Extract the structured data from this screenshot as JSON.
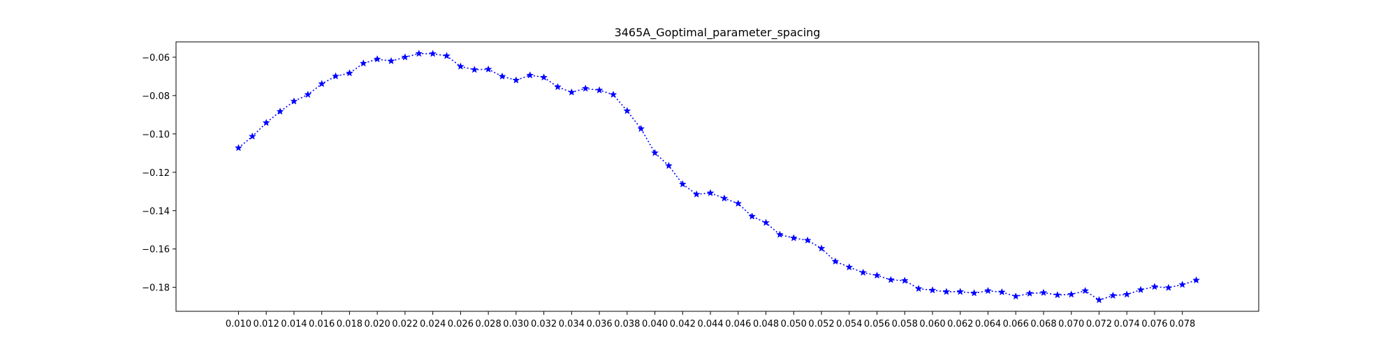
{
  "chart_data": {
    "type": "line",
    "title": "3465A_Goptimal_parameter_spacing",
    "xlabel": "",
    "ylabel": "",
    "xlim": [
      0.0055,
      0.0835
    ],
    "ylim": [
      -0.1925,
      -0.052
    ],
    "xticks": [
      0.01,
      0.012,
      0.014,
      0.016,
      0.018,
      0.02,
      0.022,
      0.024,
      0.026,
      0.028,
      0.03,
      0.032,
      0.034,
      0.036,
      0.038,
      0.04,
      0.042,
      0.044,
      0.046,
      0.048,
      0.05,
      0.052,
      0.054,
      0.056,
      0.058,
      0.06,
      0.062,
      0.064,
      0.066,
      0.068,
      0.07,
      0.072,
      0.074,
      0.076,
      0.078
    ],
    "xtick_labels": [
      "0.010",
      "0.012",
      "0.014",
      "0.016",
      "0.018",
      "0.020",
      "0.022",
      "0.024",
      "0.026",
      "0.028",
      "0.030",
      "0.032",
      "0.034",
      "0.036",
      "0.038",
      "0.040",
      "0.042",
      "0.044",
      "0.046",
      "0.048",
      "0.050",
      "0.052",
      "0.054",
      "0.056",
      "0.058",
      "0.060",
      "0.062",
      "0.064",
      "0.066",
      "0.068",
      "0.070",
      "0.072",
      "0.074",
      "0.076",
      "0.078"
    ],
    "yticks": [
      -0.18,
      -0.16,
      -0.14,
      -0.12,
      -0.1,
      -0.08,
      -0.06
    ],
    "ytick_labels": [
      "−0.18",
      "−0.16",
      "−0.14",
      "−0.12",
      "−0.10",
      "−0.08",
      "−0.06"
    ],
    "grid": false,
    "series": [
      {
        "color": "#0000ff",
        "linestyle": "dotted",
        "marker": "star",
        "x": [
          0.01,
          0.011,
          0.012,
          0.013,
          0.014,
          0.015,
          0.016,
          0.017,
          0.018,
          0.019,
          0.02,
          0.021,
          0.022,
          0.023,
          0.024,
          0.025,
          0.026,
          0.027,
          0.028,
          0.029,
          0.03,
          0.031,
          0.032,
          0.033,
          0.034,
          0.035,
          0.036,
          0.037,
          0.038,
          0.039,
          0.04,
          0.041,
          0.042,
          0.043,
          0.044,
          0.045,
          0.046,
          0.047,
          0.048,
          0.049,
          0.05,
          0.051,
          0.052,
          0.053,
          0.054,
          0.055,
          0.056,
          0.057,
          0.058,
          0.059,
          0.06,
          0.061,
          0.062,
          0.063,
          0.064,
          0.065,
          0.066,
          0.067,
          0.068,
          0.069,
          0.07,
          0.071,
          0.072,
          0.073,
          0.074,
          0.075,
          0.076,
          0.077,
          0.078,
          0.079
        ],
        "y": [
          -0.1073,
          -0.1013,
          -0.0942,
          -0.0883,
          -0.083,
          -0.0795,
          -0.0739,
          -0.0699,
          -0.0683,
          -0.0632,
          -0.061,
          -0.062,
          -0.06,
          -0.0581,
          -0.0582,
          -0.0593,
          -0.0648,
          -0.0665,
          -0.0663,
          -0.07,
          -0.072,
          -0.0694,
          -0.0705,
          -0.0755,
          -0.0783,
          -0.0763,
          -0.0772,
          -0.0795,
          -0.088,
          -0.0973,
          -0.1099,
          -0.1166,
          -0.1262,
          -0.1315,
          -0.1308,
          -0.1336,
          -0.1363,
          -0.143,
          -0.1463,
          -0.1525,
          -0.1543,
          -0.1555,
          -0.1597,
          -0.1665,
          -0.1695,
          -0.1723,
          -0.1738,
          -0.1761,
          -0.1765,
          -0.1807,
          -0.1815,
          -0.1823,
          -0.1823,
          -0.183,
          -0.1818,
          -0.1825,
          -0.1847,
          -0.1832,
          -0.1828,
          -0.184,
          -0.1837,
          -0.1818,
          -0.1866,
          -0.1843,
          -0.1837,
          -0.1813,
          -0.1797,
          -0.1802,
          -0.1786,
          -0.1763
        ]
      }
    ]
  }
}
